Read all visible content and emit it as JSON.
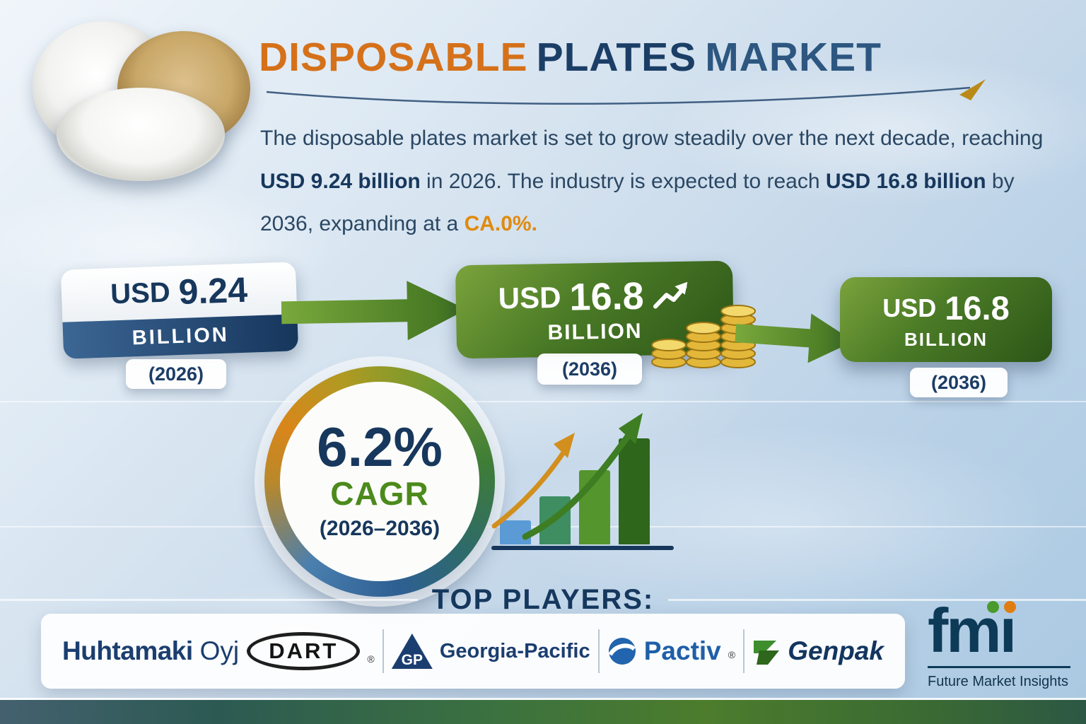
{
  "header": {
    "title_part1": "DISPOSABLE",
    "title_part2": "PLATES",
    "title_part3": "MARKET"
  },
  "description": {
    "text1": "The disposable plates market is set to grow steadily over the next decade, reaching ",
    "bold1": "USD 9.24 billion",
    "text2": " in 2026. The industry is expected to reach ",
    "bold2": "USD 16.8 billion",
    "text3": " by 2036, expanding at a ",
    "bold3": "CA.0%."
  },
  "stats": {
    "badge_2026": {
      "value_prefix": "USD",
      "value": "9.24",
      "unit": "BILLION",
      "year": "(2026)"
    },
    "badge_2036_main": {
      "value_prefix": "USD",
      "value": "16.8",
      "unit": "BILLION",
      "year": "(2036)"
    },
    "badge_2036_right": {
      "value_prefix": "USD",
      "value": "16.8",
      "unit": "BILLION",
      "year": "(2036)"
    }
  },
  "cagr": {
    "value": "6.2%",
    "label": "CAGR",
    "period": "(2026–2036)"
  },
  "top_players": {
    "heading": "TOP PLAYERS:",
    "logos": [
      {
        "name": "Huhtamaki Oyj",
        "part1": "Huhtamaki",
        "part2": "Oyj"
      },
      {
        "name": "Dart",
        "text": "DART",
        "reg": "®"
      },
      {
        "name": "Georgia-Pacific",
        "mark": "GP",
        "text": "Georgia-Pacific"
      },
      {
        "name": "Pactiv",
        "text": "Pactiv",
        "reg": "®"
      },
      {
        "name": "Genpak",
        "text": "Genpak"
      }
    ]
  },
  "fmi": {
    "brand": "fmi",
    "display_fm": "fm",
    "display_i": "ı",
    "tagline": "Future Market Insights"
  },
  "chart_data": {
    "type": "bar",
    "title": "Disposable Plates Market size",
    "categories": [
      "2026",
      "2036"
    ],
    "values": [
      9.24,
      16.8
    ],
    "unit": "USD billion",
    "cagr_percent": 6.2,
    "cagr_period": "2026–2036",
    "decorative_trend_bars": [
      1,
      2,
      3.1,
      4.4
    ],
    "bar_colors": [
      "#5b9bd5",
      "#3e8e62",
      "#55952d",
      "#2e661c"
    ]
  },
  "colors": {
    "accent_orange": "#d5711a",
    "navy": "#17375c",
    "green": "#4a7a26",
    "gold": "#e3b83a"
  }
}
